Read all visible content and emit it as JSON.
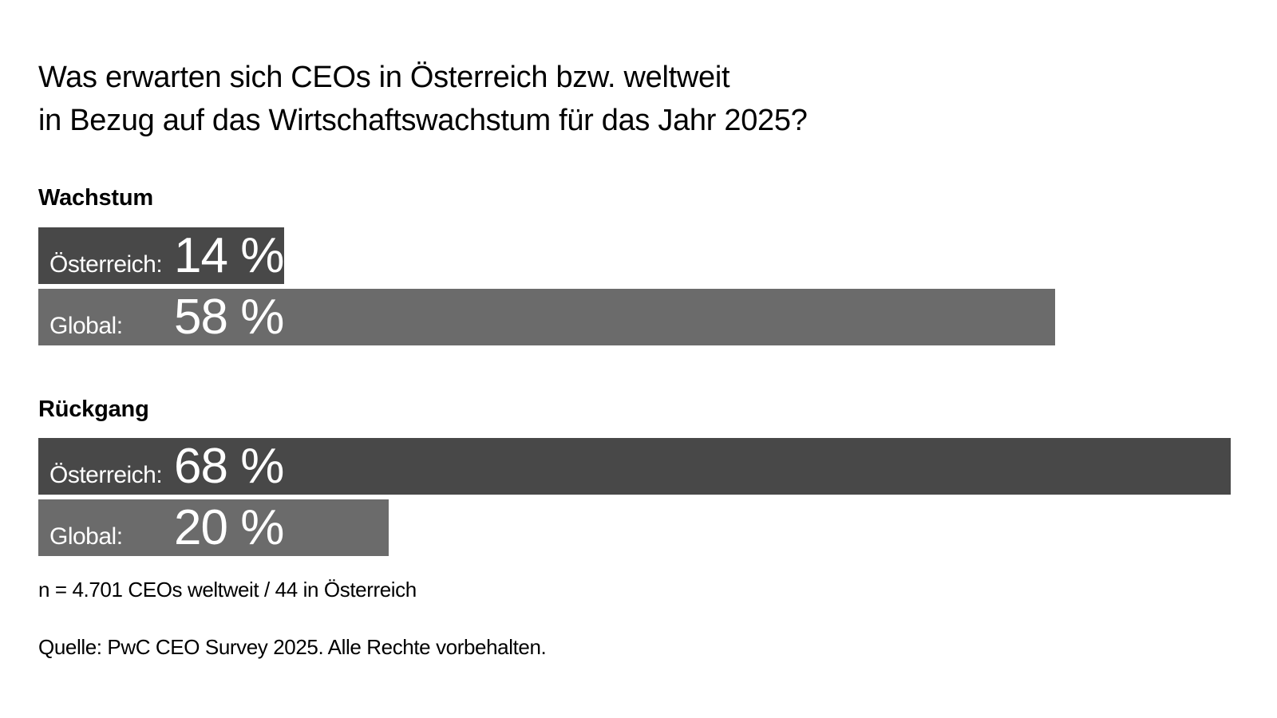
{
  "title_lines": [
    "Was erwarten sich CEOs in Österreich bzw. weltweit",
    "in Bezug auf das Wirtschaftswachstum für das Jahr 2025?"
  ],
  "colors": {
    "oesterreich": "#484848",
    "global": "#6b6b6b"
  },
  "chart_data": {
    "type": "bar",
    "orientation": "horizontal",
    "title": "Was erwarten sich CEOs in Österreich bzw. weltweit in Bezug auf das Wirtschaftswachstum für das Jahr 2025?",
    "xlim": [
      0,
      68
    ],
    "groups": [
      {
        "name": "Wachstum",
        "bars": [
          {
            "label": "Österreich:",
            "value": 14,
            "value_label": "14 %",
            "series": "oesterreich"
          },
          {
            "label": "Global:",
            "value": 58,
            "value_label": "58 %",
            "series": "global"
          }
        ]
      },
      {
        "name": "Rückgang",
        "bars": [
          {
            "label": "Österreich:",
            "value": 68,
            "value_label": "68 %",
            "series": "oesterreich"
          },
          {
            "label": "Global:",
            "value": 20,
            "value_label": "20 %",
            "series": "global"
          }
        ]
      }
    ]
  },
  "notes": {
    "sample": "n = 4.701 CEOs weltweit / 44 in Österreich",
    "source": "Quelle: PwC CEO Survey 2025. Alle Rechte vorbehalten."
  }
}
